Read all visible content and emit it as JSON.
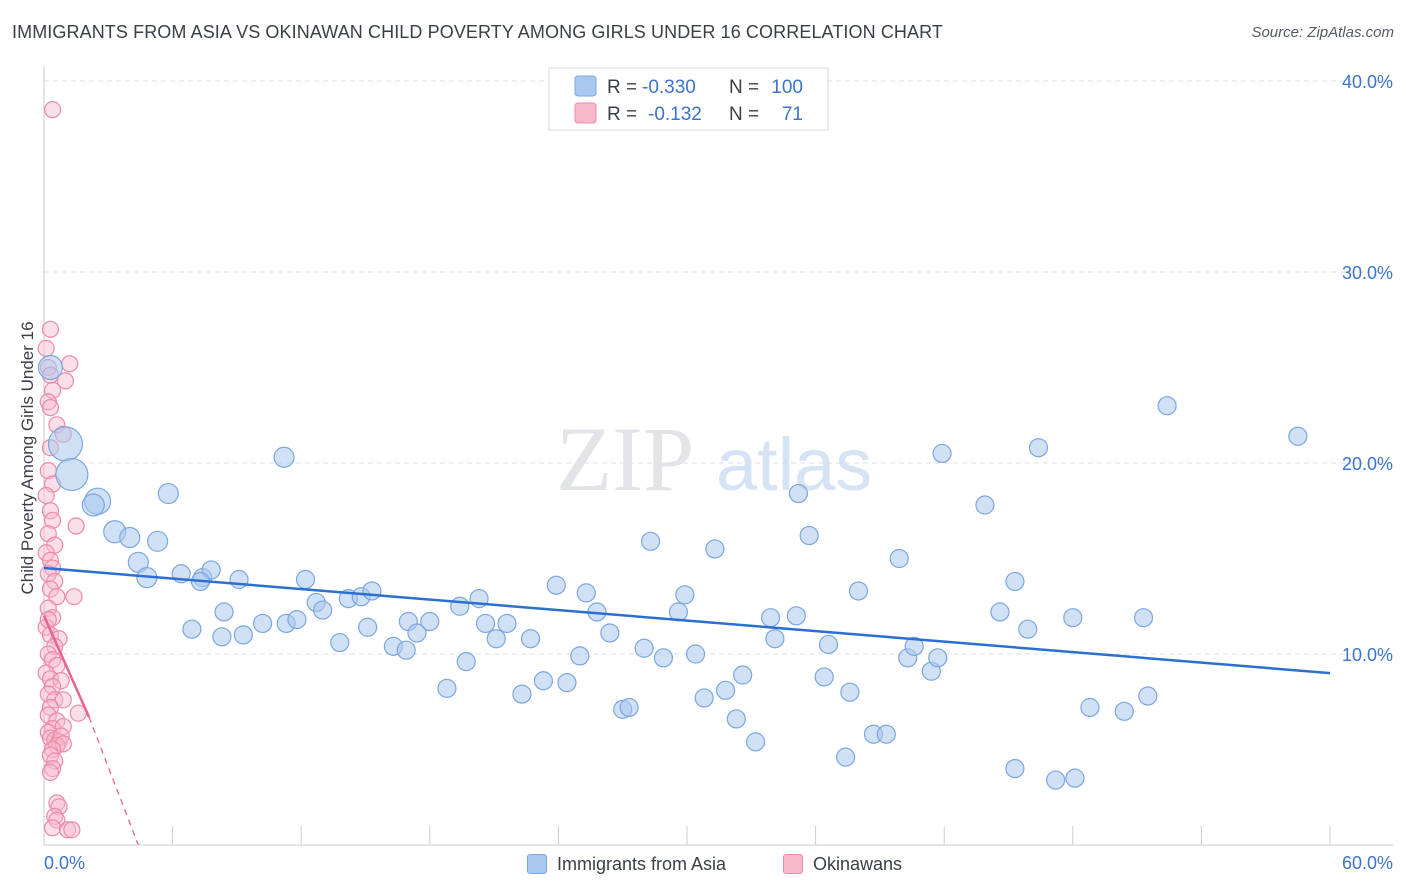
{
  "title": "IMMIGRANTS FROM ASIA VS OKINAWAN CHILD POVERTY AMONG GIRLS UNDER 16 CORRELATION CHART",
  "source": "Source: ZipAtlas.com",
  "watermark": {
    "zip": "ZIP",
    "atlas": "atlas"
  },
  "colors": {
    "blue_fill": "#a9c8ef",
    "blue_stroke": "#7ba7de",
    "blue_line": "#2b6fd1",
    "pink_fill": "#f6b8cb",
    "pink_stroke": "#ee8aa9",
    "pink_line": "#e8648e",
    "axis_text": "#3b74c9",
    "grid": "#dcdfe4"
  },
  "stats_legend": [
    {
      "r_label": "R =",
      "r_value": "-0.330",
      "n_label": "N =",
      "n_value": "100"
    },
    {
      "r_label": "R =",
      "r_value": "-0.132",
      "n_label": "N =",
      "n_value": "71"
    }
  ],
  "bottom_legend": [
    "Immigrants from Asia",
    "Okinawans"
  ],
  "chart_data": {
    "type": "scatter",
    "xlabel": "",
    "ylabel": "Child Poverty Among Girls Under 16",
    "xlim": [
      0,
      60
    ],
    "ylim": [
      0,
      41
    ],
    "x_tick_labels": [
      {
        "value": 0,
        "label": "0.0%"
      },
      {
        "value": 60,
        "label": "60.0%"
      }
    ],
    "y_tick_labels": [
      {
        "value": 10,
        "label": "10.0%"
      },
      {
        "value": 20,
        "label": "20.0%"
      },
      {
        "value": 30,
        "label": "30.0%"
      },
      {
        "value": 40,
        "label": "40.0%"
      }
    ],
    "grid": true,
    "series": [
      {
        "name": "Immigrants from Asia",
        "color": "#a9c8ef",
        "trend": {
          "x": [
            0,
            60
          ],
          "y": [
            14.5,
            9.0
          ]
        },
        "points": [
          [
            0.3,
            25.0,
            12
          ],
          [
            1.0,
            21.0,
            17
          ],
          [
            1.3,
            19.4,
            16
          ],
          [
            2.5,
            18.0,
            13
          ],
          [
            2.3,
            17.8,
            11
          ],
          [
            3.3,
            16.4,
            11
          ],
          [
            4.0,
            16.1,
            10
          ],
          [
            5.3,
            15.9,
            10
          ],
          [
            4.4,
            14.8,
            10
          ],
          [
            4.8,
            14.0,
            10
          ],
          [
            5.8,
            18.4,
            10
          ],
          [
            6.4,
            14.2,
            9
          ],
          [
            7.4,
            14.0,
            9
          ],
          [
            7.8,
            14.4,
            9
          ],
          [
            9.1,
            13.9,
            9
          ],
          [
            8.4,
            12.2,
            9
          ],
          [
            6.9,
            11.3,
            9
          ],
          [
            8.3,
            10.9,
            9
          ],
          [
            9.3,
            11.0,
            9
          ],
          [
            10.2,
            11.6,
            9
          ],
          [
            11.3,
            11.6,
            9
          ],
          [
            11.8,
            11.8,
            9
          ],
          [
            11.2,
            20.3,
            10
          ],
          [
            12.2,
            13.9,
            9
          ],
          [
            12.7,
            12.7,
            9
          ],
          [
            13.0,
            12.3,
            9
          ],
          [
            13.8,
            10.6,
            9
          ],
          [
            14.2,
            12.9,
            9
          ],
          [
            14.8,
            13.0,
            9
          ],
          [
            15.3,
            13.3,
            9
          ],
          [
            15.1,
            11.4,
            9
          ],
          [
            16.3,
            10.4,
            9
          ],
          [
            16.9,
            10.2,
            9
          ],
          [
            17.0,
            11.7,
            9
          ],
          [
            17.4,
            11.1,
            9
          ],
          [
            18.0,
            11.7,
            9
          ],
          [
            18.8,
            8.2,
            9
          ],
          [
            19.4,
            12.5,
            9
          ],
          [
            19.7,
            9.6,
            9
          ],
          [
            20.3,
            12.9,
            9
          ],
          [
            20.6,
            11.6,
            9
          ],
          [
            21.1,
            10.8,
            9
          ],
          [
            21.6,
            11.6,
            9
          ],
          [
            22.3,
            7.9,
            9
          ],
          [
            22.7,
            10.8,
            9
          ],
          [
            23.3,
            8.6,
            9
          ],
          [
            23.9,
            13.6,
            9
          ],
          [
            24.4,
            8.5,
            9
          ],
          [
            25.0,
            9.9,
            9
          ],
          [
            25.3,
            13.2,
            9
          ],
          [
            25.8,
            12.2,
            9
          ],
          [
            26.4,
            11.1,
            9
          ],
          [
            27.0,
            7.1,
            9
          ],
          [
            27.3,
            7.2,
            9
          ],
          [
            28.0,
            10.3,
            9
          ],
          [
            28.3,
            15.9,
            9
          ],
          [
            28.9,
            9.8,
            9
          ],
          [
            29.6,
            12.2,
            9
          ],
          [
            29.9,
            13.1,
            9
          ],
          [
            30.4,
            10.0,
            9
          ],
          [
            30.8,
            7.7,
            9
          ],
          [
            31.3,
            15.5,
            9
          ],
          [
            31.8,
            8.1,
            9
          ],
          [
            32.3,
            6.6,
            9
          ],
          [
            32.6,
            8.9,
            9
          ],
          [
            33.2,
            5.4,
            9
          ],
          [
            33.9,
            11.9,
            9
          ],
          [
            34.1,
            10.8,
            9
          ],
          [
            35.1,
            12.0,
            9
          ],
          [
            35.2,
            18.4,
            9
          ],
          [
            35.7,
            16.2,
            9
          ],
          [
            36.4,
            8.8,
            9
          ],
          [
            36.6,
            10.5,
            9
          ],
          [
            37.4,
            4.6,
            9
          ],
          [
            37.6,
            8.0,
            9
          ],
          [
            38.0,
            13.3,
            9
          ],
          [
            38.7,
            5.8,
            9
          ],
          [
            39.3,
            5.8,
            9
          ],
          [
            39.9,
            15.0,
            9
          ],
          [
            40.3,
            9.8,
            9
          ],
          [
            40.6,
            10.4,
            9
          ],
          [
            41.4,
            9.1,
            9
          ],
          [
            41.7,
            9.8,
            9
          ],
          [
            41.9,
            20.5,
            9
          ],
          [
            43.9,
            17.8,
            9
          ],
          [
            44.6,
            12.2,
            9
          ],
          [
            45.3,
            13.8,
            9
          ],
          [
            45.3,
            4.0,
            9
          ],
          [
            45.9,
            11.3,
            9
          ],
          [
            46.4,
            20.8,
            9
          ],
          [
            47.2,
            3.4,
            9
          ],
          [
            48.1,
            3.5,
            9
          ],
          [
            48.0,
            11.9,
            9
          ],
          [
            48.8,
            7.2,
            9
          ],
          [
            50.4,
            7.0,
            9
          ],
          [
            51.3,
            11.9,
            9
          ],
          [
            51.5,
            7.8,
            9
          ],
          [
            52.4,
            23.0,
            9
          ],
          [
            58.5,
            21.4,
            9
          ],
          [
            7.3,
            13.8,
            9
          ]
        ]
      },
      {
        "name": "Okinawans",
        "color": "#f6b8cb",
        "trend": {
          "x": [
            0,
            2.1
          ],
          "y": [
            12.0,
            6.7
          ],
          "dashed_to": [
            4.4,
            0.0
          ]
        },
        "points": [
          [
            0.4,
            38.5,
            8
          ],
          [
            0.3,
            27.0,
            8
          ],
          [
            0.1,
            26.0,
            8
          ],
          [
            0.2,
            25.0,
            8
          ],
          [
            0.3,
            24.6,
            8
          ],
          [
            1.2,
            25.2,
            8
          ],
          [
            1.0,
            24.3,
            8
          ],
          [
            0.4,
            23.8,
            8
          ],
          [
            0.2,
            23.2,
            8
          ],
          [
            0.3,
            22.9,
            8
          ],
          [
            0.6,
            22.0,
            8
          ],
          [
            0.9,
            21.5,
            8
          ],
          [
            0.3,
            20.8,
            8
          ],
          [
            0.2,
            19.6,
            8
          ],
          [
            0.4,
            18.9,
            8
          ],
          [
            0.1,
            18.3,
            8
          ],
          [
            0.3,
            17.5,
            8
          ],
          [
            0.4,
            17.0,
            8
          ],
          [
            1.5,
            16.7,
            8
          ],
          [
            0.2,
            16.3,
            8
          ],
          [
            0.5,
            15.7,
            8
          ],
          [
            0.1,
            15.3,
            8
          ],
          [
            0.3,
            14.9,
            8
          ],
          [
            0.4,
            14.5,
            8
          ],
          [
            0.2,
            14.2,
            8
          ],
          [
            0.5,
            13.8,
            8
          ],
          [
            0.3,
            13.4,
            8
          ],
          [
            0.6,
            13.0,
            8
          ],
          [
            1.4,
            13.0,
            8
          ],
          [
            0.2,
            12.4,
            8
          ],
          [
            0.4,
            11.9,
            8
          ],
          [
            0.1,
            11.4,
            8
          ],
          [
            0.3,
            11.0,
            8
          ],
          [
            0.7,
            10.8,
            8
          ],
          [
            0.5,
            10.4,
            8
          ],
          [
            0.2,
            10.0,
            8
          ],
          [
            0.4,
            9.7,
            8
          ],
          [
            0.6,
            9.4,
            8
          ],
          [
            0.1,
            9.0,
            8
          ],
          [
            0.3,
            8.7,
            8
          ],
          [
            0.8,
            8.6,
            8
          ],
          [
            0.4,
            8.3,
            8
          ],
          [
            0.2,
            7.9,
            8
          ],
          [
            0.5,
            7.6,
            8
          ],
          [
            0.9,
            7.6,
            8
          ],
          [
            0.3,
            7.2,
            8
          ],
          [
            0.2,
            6.8,
            8
          ],
          [
            1.6,
            6.9,
            8
          ],
          [
            0.6,
            6.5,
            8
          ],
          [
            0.4,
            6.1,
            8
          ],
          [
            0.9,
            6.2,
            8
          ],
          [
            0.2,
            5.9,
            8
          ],
          [
            0.3,
            5.6,
            8
          ],
          [
            0.5,
            5.5,
            8
          ],
          [
            0.7,
            5.4,
            8
          ],
          [
            0.8,
            5.7,
            8
          ],
          [
            0.6,
            5.2,
            8
          ],
          [
            0.9,
            5.3,
            8
          ],
          [
            0.4,
            5.0,
            8
          ],
          [
            0.3,
            4.7,
            8
          ],
          [
            0.5,
            4.4,
            8
          ],
          [
            0.4,
            4.0,
            8
          ],
          [
            0.3,
            3.8,
            8
          ],
          [
            0.6,
            2.2,
            8
          ],
          [
            0.7,
            2.0,
            8
          ],
          [
            0.5,
            1.5,
            8
          ],
          [
            0.6,
            1.3,
            8
          ],
          [
            0.4,
            0.9,
            8
          ],
          [
            1.1,
            0.8,
            8
          ],
          [
            1.3,
            0.8,
            8
          ],
          [
            0.2,
            11.8,
            8
          ]
        ]
      }
    ]
  }
}
